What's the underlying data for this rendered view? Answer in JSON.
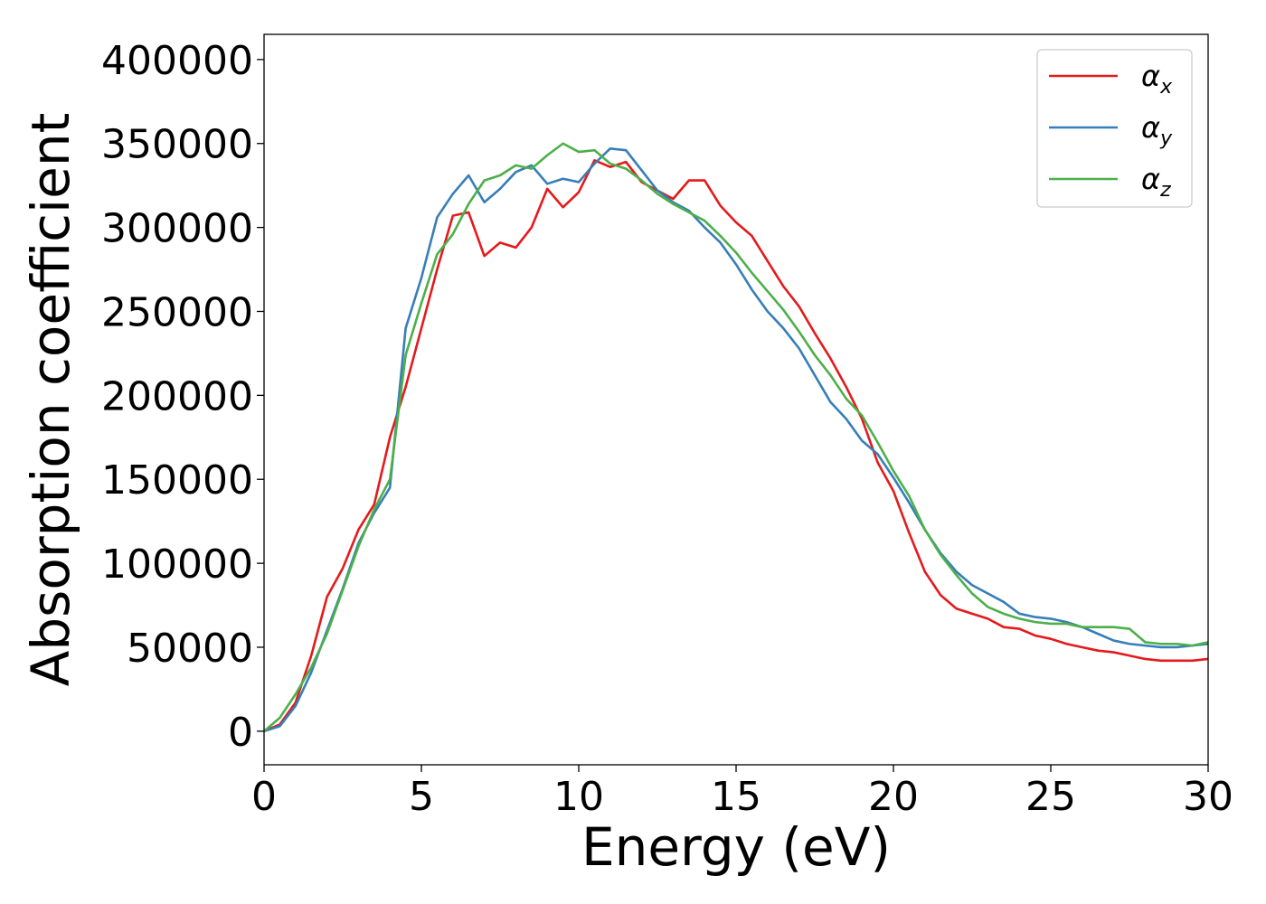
{
  "chart_data": {
    "type": "line",
    "title": "",
    "xlabel": "Energy (eV)",
    "ylabel": "Absorption coefficient",
    "xlim": [
      0,
      30
    ],
    "ylim": [
      -20000,
      415000
    ],
    "xticks": [
      0,
      5,
      10,
      15,
      20,
      25,
      30
    ],
    "yticks": [
      0,
      50000,
      100000,
      150000,
      200000,
      250000,
      300000,
      350000,
      400000
    ],
    "xtick_labels": [
      "0",
      "5",
      "10",
      "15",
      "20",
      "25",
      "30"
    ],
    "ytick_labels": [
      "0",
      "50000",
      "100000",
      "150000",
      "200000",
      "250000",
      "300000",
      "350000",
      "400000"
    ],
    "grid": false,
    "legend_position": "top-right",
    "series": [
      {
        "name": "α_x",
        "label_base": "α",
        "label_sub": "x",
        "color": "#e41a1c",
        "x": [
          0,
          0.5,
          1,
          1.5,
          2,
          2.5,
          3,
          3.5,
          4,
          4.5,
          5,
          5.5,
          6,
          6.5,
          7,
          7.5,
          8,
          8.5,
          9,
          9.5,
          10,
          10.5,
          11,
          11.5,
          12,
          12.5,
          13,
          13.5,
          14,
          14.5,
          15,
          15.5,
          16,
          16.5,
          17,
          17.5,
          18,
          18.5,
          19,
          19.5,
          20,
          20.5,
          21,
          21.5,
          22,
          22.5,
          23,
          23.5,
          24,
          24.5,
          25,
          25.5,
          26,
          26.5,
          27,
          27.5,
          28,
          28.5,
          29,
          29.5,
          30
        ],
        "y": [
          0,
          4000,
          17000,
          45000,
          80000,
          97000,
          120000,
          135000,
          175000,
          205000,
          240000,
          275000,
          307000,
          309000,
          283000,
          291000,
          288000,
          300000,
          323000,
          312000,
          321000,
          340000,
          336000,
          339000,
          327000,
          322000,
          317000,
          328000,
          328000,
          313000,
          303000,
          295000,
          280000,
          265000,
          253000,
          237000,
          222000,
          205000,
          186000,
          160000,
          143000,
          118000,
          95000,
          81000,
          73000,
          70000,
          67000,
          62000,
          61000,
          57000,
          55000,
          52000,
          50000,
          48000,
          47000,
          45000,
          43000,
          42000,
          42000,
          42000,
          43000
        ]
      },
      {
        "name": "α_y",
        "label_base": "α",
        "label_sub": "y",
        "color": "#377eb8",
        "x": [
          0,
          0.5,
          1,
          1.5,
          2,
          2.5,
          3,
          3.5,
          4,
          4.5,
          5,
          5.5,
          6,
          6.5,
          7,
          7.5,
          8,
          8.5,
          9,
          9.5,
          10,
          10.5,
          11,
          11.5,
          12,
          12.5,
          13,
          13.5,
          14,
          14.5,
          15,
          15.5,
          16,
          16.5,
          17,
          17.5,
          18,
          18.5,
          19,
          19.5,
          20,
          20.5,
          21,
          21.5,
          22,
          22.5,
          23,
          23.5,
          24,
          24.5,
          25,
          25.5,
          26,
          26.5,
          27,
          27.5,
          28,
          28.5,
          29,
          29.5,
          30
        ],
        "y": [
          0,
          3000,
          15000,
          35000,
          60000,
          85000,
          112000,
          130000,
          145000,
          240000,
          270000,
          306000,
          320000,
          331000,
          315000,
          323000,
          333000,
          337000,
          326000,
          329000,
          327000,
          338000,
          347000,
          346000,
          334000,
          322000,
          315000,
          310000,
          300000,
          291000,
          278000,
          263000,
          250000,
          240000,
          228000,
          212000,
          196000,
          186000,
          173000,
          165000,
          151000,
          136000,
          120000,
          106000,
          95000,
          87000,
          82000,
          77000,
          70000,
          68000,
          67000,
          65000,
          62000,
          58000,
          54000,
          52000,
          51000,
          50000,
          50000,
          51000,
          52000
        ]
      },
      {
        "name": "α_z",
        "label_base": "α",
        "label_sub": "z",
        "color": "#4daf4a",
        "x": [
          0,
          0.5,
          1,
          1.5,
          2,
          2.5,
          3,
          3.5,
          4,
          4.5,
          5,
          5.5,
          6,
          6.5,
          7,
          7.5,
          8,
          8.5,
          9,
          9.5,
          10,
          10.5,
          11,
          11.5,
          12,
          12.5,
          13,
          13.5,
          14,
          14.5,
          15,
          15.5,
          16,
          16.5,
          17,
          17.5,
          18,
          18.5,
          19,
          19.5,
          20,
          20.5,
          21,
          21.5,
          22,
          22.5,
          23,
          23.5,
          24,
          24.5,
          25,
          25.5,
          26,
          26.5,
          27,
          27.5,
          28,
          28.5,
          29,
          29.5,
          30
        ],
        "y": [
          0,
          8000,
          22000,
          38000,
          58000,
          84000,
          110000,
          132000,
          150000,
          224000,
          255000,
          284000,
          296000,
          314000,
          328000,
          331000,
          337000,
          335000,
          343000,
          350000,
          345000,
          346000,
          338000,
          335000,
          328000,
          320000,
          314000,
          309000,
          304000,
          295000,
          285000,
          273000,
          262000,
          251000,
          238000,
          224000,
          212000,
          198000,
          188000,
          172000,
          155000,
          140000,
          120000,
          105000,
          93000,
          82000,
          74000,
          70000,
          67000,
          65000,
          64000,
          64000,
          62000,
          62000,
          62000,
          61000,
          53000,
          52000,
          52000,
          51000,
          53000
        ]
      }
    ]
  }
}
